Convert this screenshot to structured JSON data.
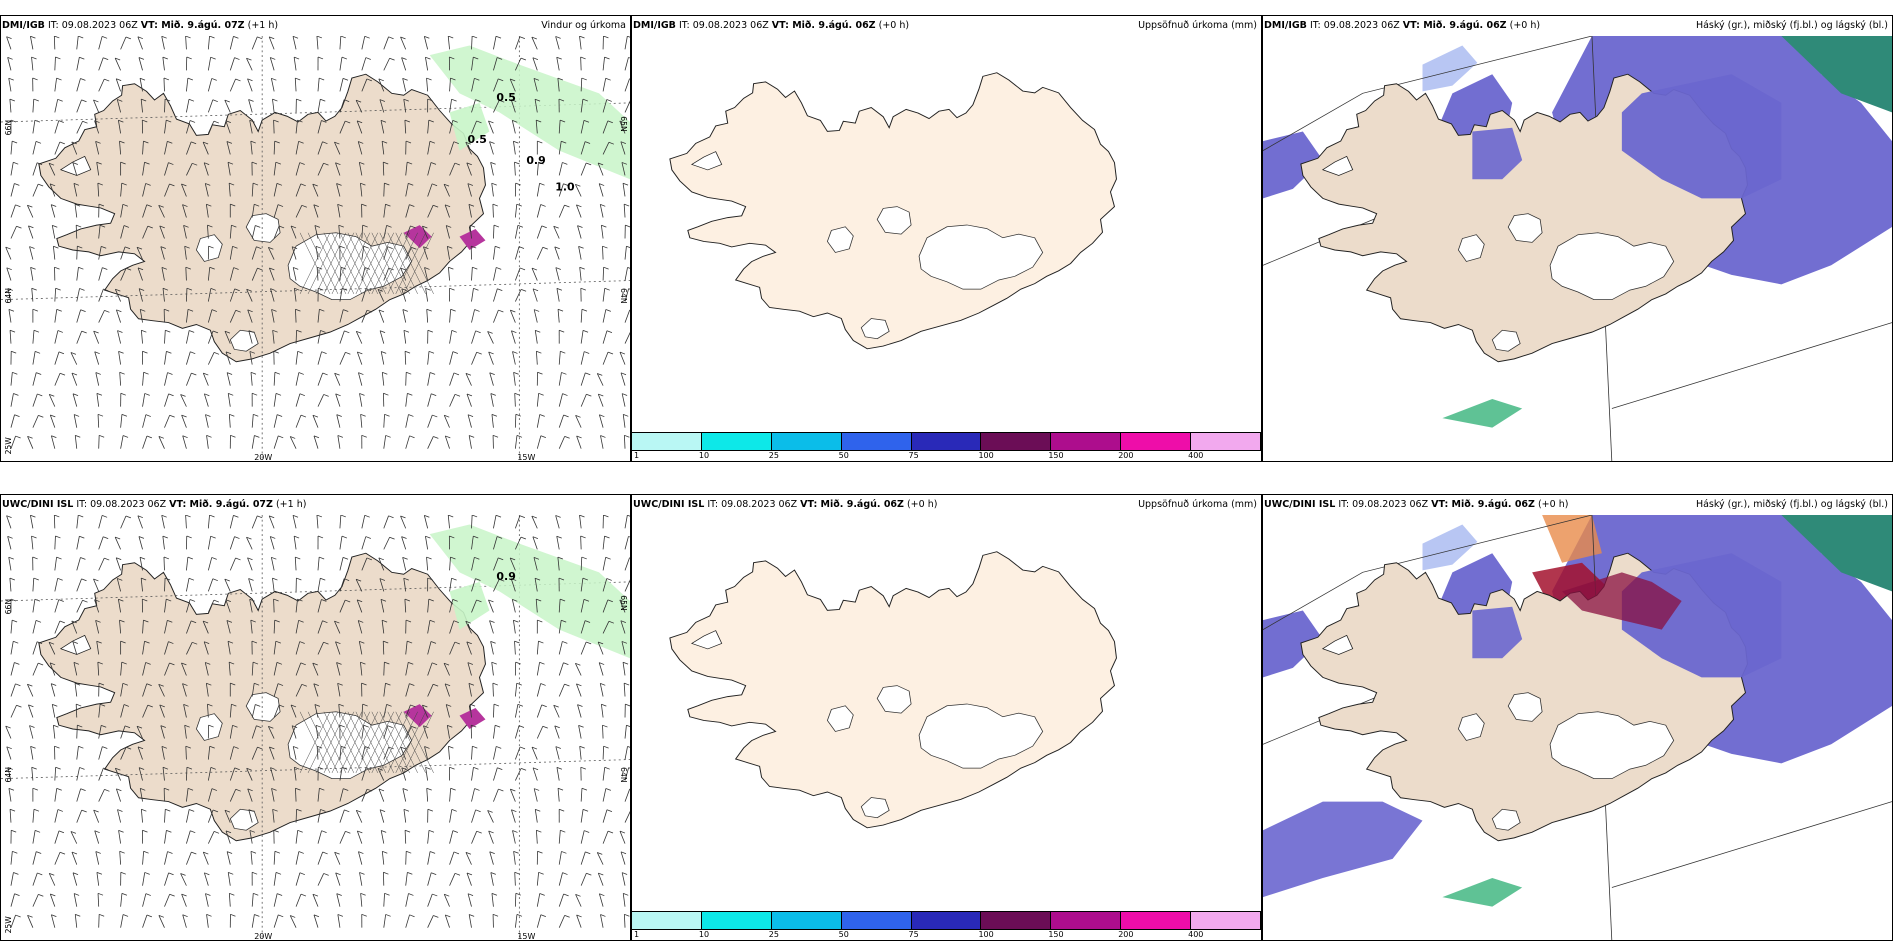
{
  "rows": [
    {
      "panels": [
        {
          "type": "wind",
          "model": "DMI/IGB",
          "it": "IT: 09.08.2023 06Z",
          "vt": "VT: Mið. 9.ágú. 07Z",
          "lead": "(+1 h)",
          "title": "Vindur og úrkoma",
          "lat_labels": [
            "66N",
            "64N",
            "25W"
          ],
          "lon_labels": [
            "20W",
            "15W"
          ],
          "right_labels": [
            "65N",
            "64N"
          ],
          "contour_labels": [
            "0.5",
            "0.5",
            "0.9",
            "1.0"
          ]
        },
        {
          "type": "precip",
          "model": "DMI/IGB",
          "it": "IT: 09.08.2023 06Z",
          "vt": "VT: Mið. 9.ágú. 06Z",
          "lead": "(+0 h)",
          "title": "Uppsöfnuð úrkoma (mm)",
          "colorbar": [
            "1",
            "10",
            "25",
            "50",
            "75",
            "100",
            "150",
            "200",
            "400"
          ]
        },
        {
          "type": "cloud",
          "model": "DMI/IGB",
          "it": "IT: 09.08.2023 06Z",
          "vt": "VT: Mið. 9.ágú. 06Z",
          "lead": "(+0 h)",
          "title": "Háský (gr.), miðský (fj.bl.) og lágský (bl.)"
        }
      ]
    },
    {
      "panels": [
        {
          "type": "wind",
          "model": "UWC/DINI ISL",
          "it": "IT: 09.08.2023 06Z",
          "vt": "VT: Mið. 9.ágú. 07Z",
          "lead": "(+1 h)",
          "title": "",
          "lat_labels": [
            "66N",
            "64N",
            "25W"
          ],
          "lon_labels": [
            "20W",
            "15W"
          ],
          "right_labels": [
            "65N",
            "64N"
          ],
          "contour_labels": [
            "0.9"
          ]
        },
        {
          "type": "precip",
          "model": "UWC/DINI ISL",
          "it": "IT: 09.08.2023 06Z",
          "vt": "VT: Mið. 9.ágú. 06Z",
          "lead": "(+0 h)",
          "title": "Uppsöfnuð úrkoma (mm)",
          "colorbar": [
            "1",
            "10",
            "25",
            "50",
            "75",
            "100",
            "150",
            "200",
            "400"
          ]
        },
        {
          "type": "cloud",
          "model": "UWC/DINI ISL",
          "it": "IT: 09.08.2023 06Z",
          "vt": "VT: Mið. 9.ágú. 06Z",
          "lead": "(+0 h)",
          "title": "Háský (gr.), miðský (fj.bl.) og lágský (bl.)"
        }
      ]
    }
  ],
  "colors": {
    "land_wind": "#ecdccb",
    "land_precip": "#fdf0e2",
    "land_cloud": "#ecdccb",
    "rain_light": "#c8f5c8",
    "rain_magenta": "#b6359d",
    "low_cloud": "#6a66cf",
    "mid_cloud": "#a6b8f0",
    "high_cloud": "#2f8a78",
    "colorbar": [
      "#b9f7f4",
      "#0de8e8",
      "#0bbde9",
      "#2f63ec",
      "#2929b8",
      "#6b0d56",
      "#ad0d8d",
      "#ee0da9",
      "#f2a9ee"
    ]
  },
  "icons": [
    "wind-barb-icon",
    "hatch-glacier-icon",
    "coastline-icon"
  ]
}
